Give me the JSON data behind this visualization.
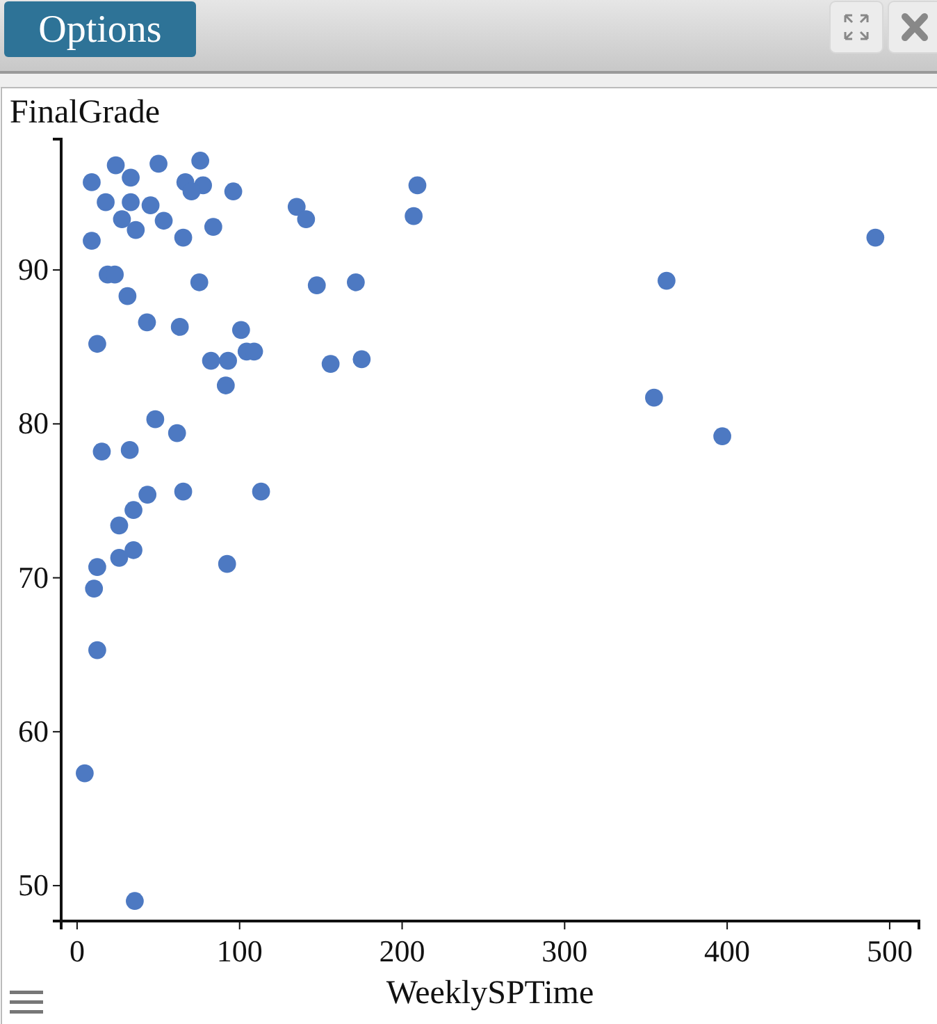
{
  "chart_data": {
    "type": "scatter",
    "xlabel": "WeeklySPTime",
    "ylabel": "FinalGrade",
    "annotations": [
      "Options"
    ],
    "x": [
      23.8,
      50.1,
      75.8,
      9.0,
      33.0,
      66.6,
      77.5,
      70.4,
      96.1,
      209.4,
      17.6,
      33.0,
      45.2,
      135.1,
      140.9,
      207.1,
      27.6,
      53.3,
      36.1,
      83.8,
      65.3,
      9.0,
      18.8,
      23.2,
      75.2,
      147.5,
      171.5,
      31.0,
      43.0,
      63.2,
      100.9,
      12.4,
      82.4,
      92.9,
      104.3,
      108.9,
      156.0,
      175.1,
      91.5,
      362.7,
      355.0,
      397.0,
      491.2,
      48.1,
      61.5,
      15.2,
      32.4,
      43.3,
      65.3,
      113.2,
      34.7,
      25.9,
      34.7,
      25.9,
      12.4,
      10.4,
      92.3,
      12.4,
      4.7,
      35.5
    ],
    "values": [
      96.8,
      96.9,
      97.1,
      95.7,
      96.0,
      95.7,
      95.5,
      95.1,
      95.1,
      95.5,
      94.4,
      94.4,
      94.2,
      94.1,
      93.3,
      93.5,
      93.3,
      93.2,
      92.6,
      92.8,
      92.1,
      91.9,
      89.7,
      89.7,
      89.2,
      89.0,
      89.2,
      88.3,
      86.6,
      86.3,
      86.1,
      85.2,
      84.1,
      84.1,
      84.7,
      84.7,
      83.9,
      84.2,
      82.5,
      89.3,
      81.7,
      79.2,
      92.1,
      80.3,
      79.4,
      78.2,
      78.3,
      75.4,
      75.6,
      75.6,
      74.4,
      73.4,
      71.8,
      71.3,
      70.7,
      69.3,
      70.9,
      65.3,
      57.3,
      49.0
    ],
    "color": "#4d79c2",
    "marker": "circle",
    "grid": false,
    "xlim": [
      -9.8,
      518
    ],
    "xticks": [
      0,
      100,
      200,
      300,
      400,
      500
    ],
    "ylim": [
      47.7,
      98.5
    ],
    "yticks": [
      50,
      60,
      70,
      80,
      90
    ]
  }
}
